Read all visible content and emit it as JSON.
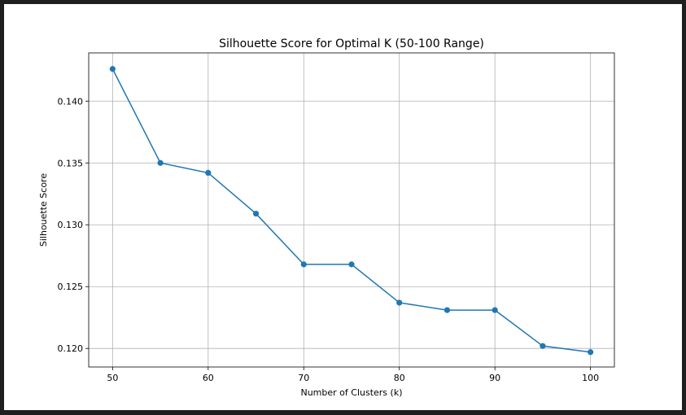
{
  "chart_data": {
    "type": "line",
    "title": "Silhouette Score for Optimal K (50-100 Range)",
    "xlabel": "Number of Clusters (k)",
    "ylabel": "Silhouette Score",
    "xlim": [
      47.5,
      102.5
    ],
    "ylim": [
      0.1185,
      0.1439
    ],
    "xticks": [
      50,
      60,
      70,
      80,
      90,
      100
    ],
    "xtick_labels": [
      "50",
      "60",
      "70",
      "80",
      "90",
      "100"
    ],
    "yticks": [
      0.12,
      0.125,
      0.13,
      0.135,
      0.14
    ],
    "ytick_labels": [
      "0.120",
      "0.125",
      "0.130",
      "0.135",
      "0.140"
    ],
    "grid": true,
    "x": [
      50,
      55,
      60,
      65,
      70,
      75,
      80,
      85,
      90,
      95,
      100
    ],
    "series": [
      {
        "color": "#1f77b4",
        "marker": "circle",
        "values": [
          0.1426,
          0.135,
          0.1342,
          0.1309,
          0.1268,
          0.1268,
          0.1237,
          0.1231,
          0.1231,
          0.1202,
          0.1197
        ]
      }
    ]
  }
}
